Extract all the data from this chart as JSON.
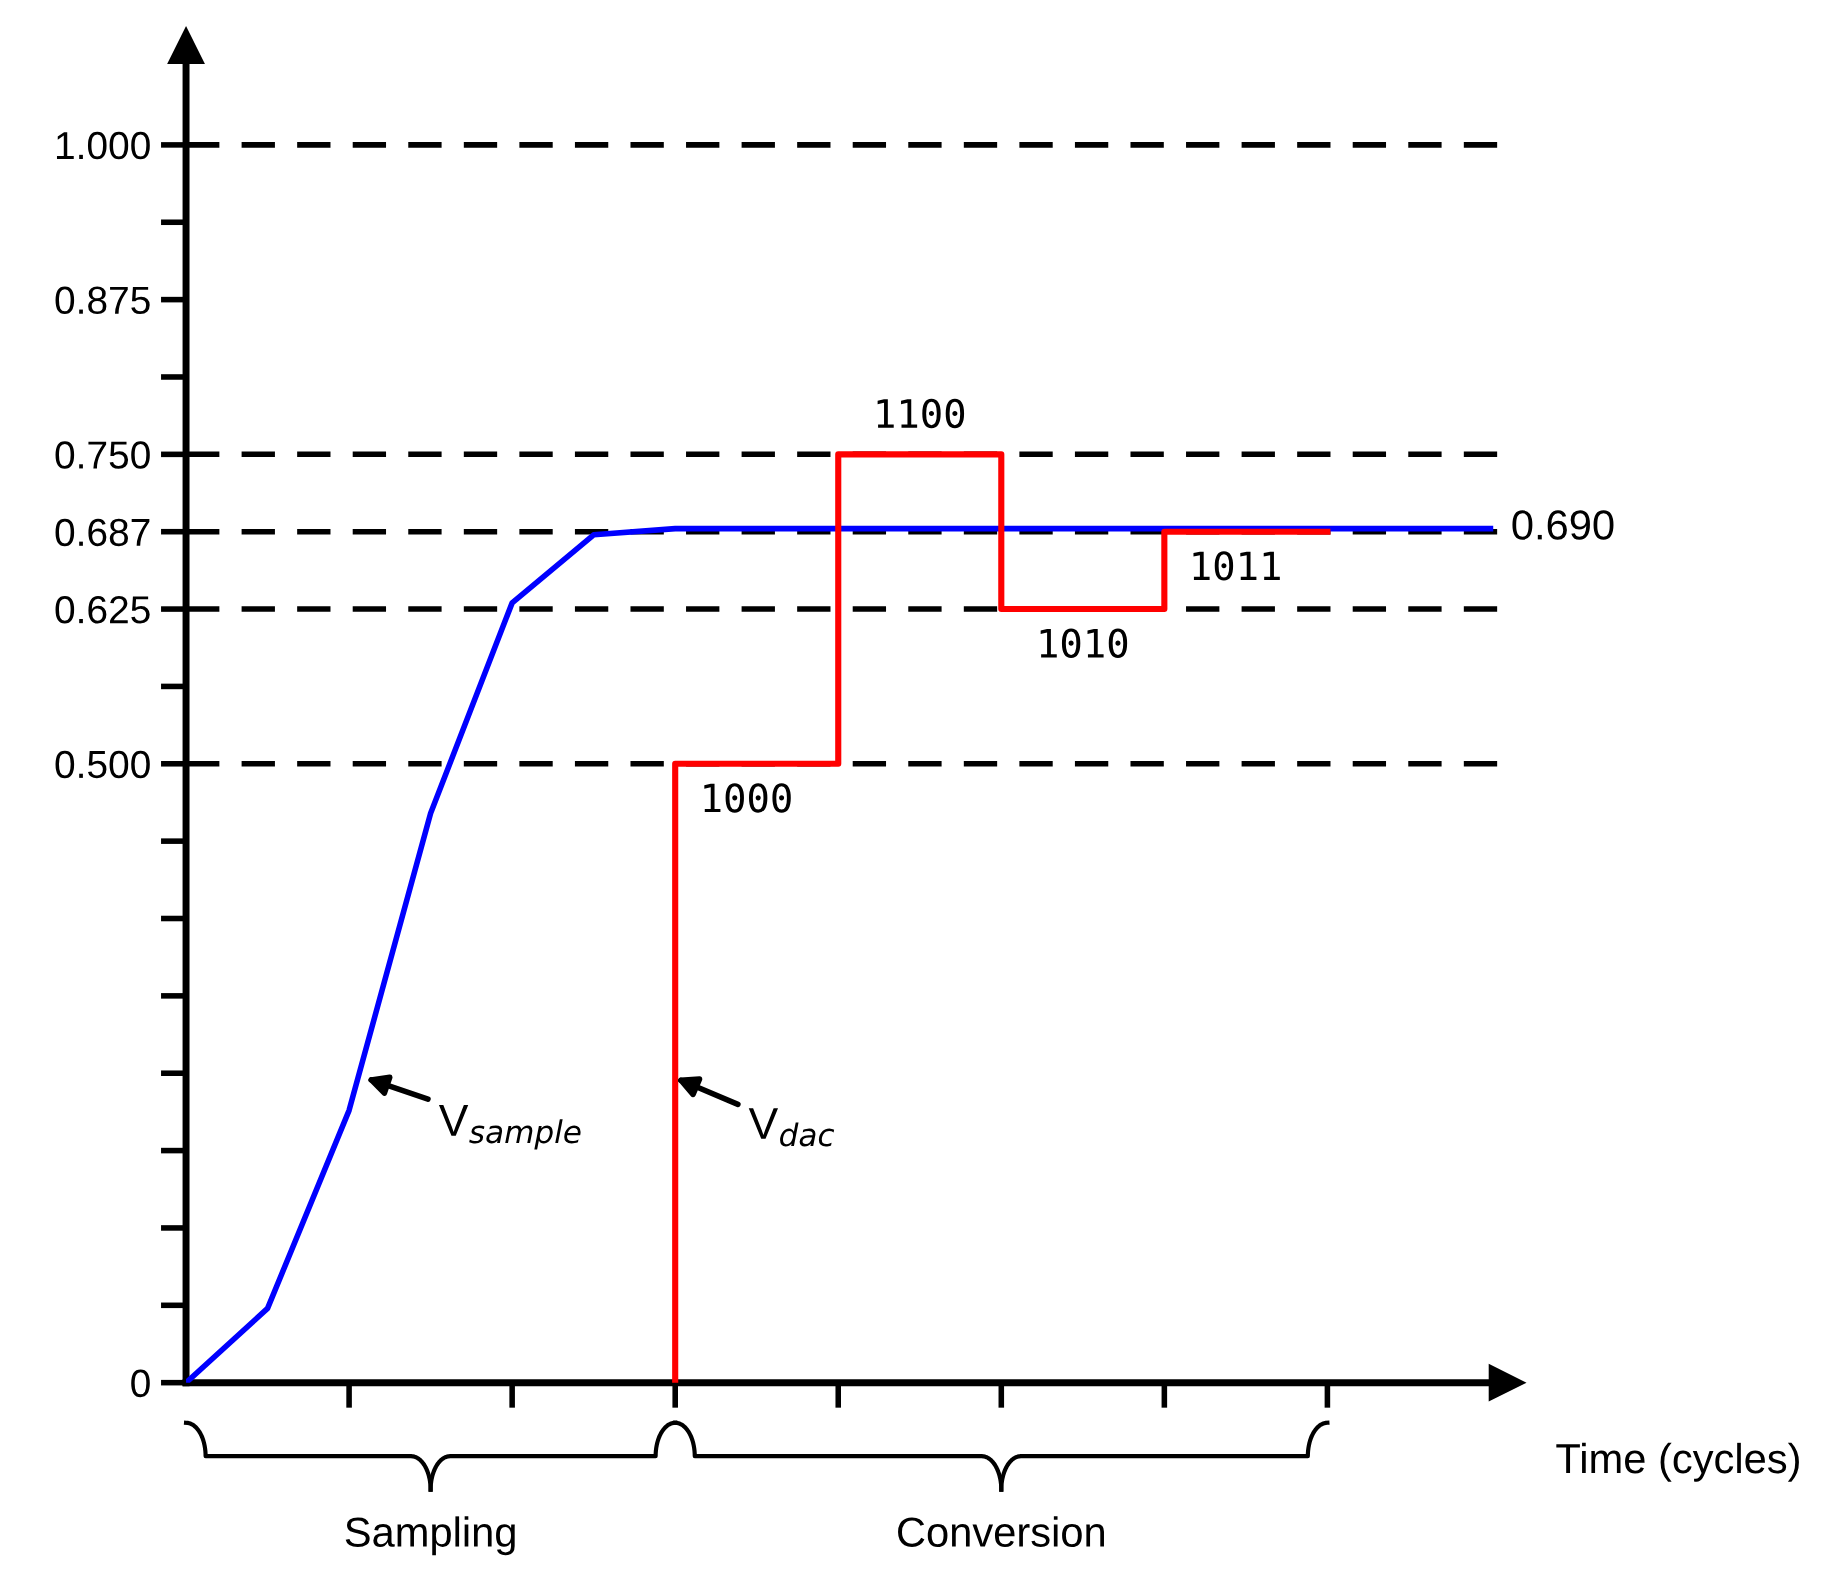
{
  "chart_data": {
    "type": "line",
    "xlabel": "Time (cycles)",
    "categories": [
      null,
      null,
      null,
      null,
      null,
      null,
      null,
      null,
      null,
      null,
      null,
      null,
      null,
      null,
      null,
      null,
      null
    ],
    "ylim": [
      0,
      1.08
    ],
    "yticks": [
      {
        "value": 0,
        "label": "0"
      },
      {
        "value": 0.0625,
        "label": null
      },
      {
        "value": 0.125,
        "label": null
      },
      {
        "value": 0.1875,
        "label": null
      },
      {
        "value": 0.25,
        "label": null
      },
      {
        "value": 0.3125,
        "label": null
      },
      {
        "value": 0.375,
        "label": null
      },
      {
        "value": 0.4375,
        "label": null
      },
      {
        "value": 0.5,
        "label": "0.500"
      },
      {
        "value": 0.5625,
        "label": null
      },
      {
        "value": 0.625,
        "label": "0.625"
      },
      {
        "value": 0.6875,
        "label": "0.687"
      },
      {
        "value": 0.75,
        "label": "0.750"
      },
      {
        "value": 0.8125,
        "label": null
      },
      {
        "value": 0.875,
        "label": "0.875"
      },
      {
        "value": 0.9375,
        "label": null
      },
      {
        "value": 1.0,
        "label": "1.000"
      }
    ],
    "tick_labels": "y",
    "grid": false,
    "legend": false,
    "series": [
      {
        "color": "#0000ff",
        "values": [
          0,
          0.06,
          0.22,
          0.46,
          0.63,
          0.685,
          0.69,
          0.69,
          0.69,
          0.69,
          0.69,
          0.69,
          0.69,
          0.69,
          0.69,
          0.69,
          0.69
        ]
      },
      {
        "type": "step",
        "color": "#ff0000",
        "values": [
          null,
          null,
          null,
          null,
          null,
          null,
          0,
          0.5,
          0.5,
          0.75,
          0.75,
          0.625,
          0.625,
          0.6875,
          0.6875,
          null,
          null
        ]
      }
    ],
    "ref_lines": [
      {
        "axis": "y",
        "value": 0.5,
        "line_style": "dashed",
        "color": "#000000"
      },
      {
        "axis": "y",
        "value": 0.625,
        "line_style": "dashed",
        "color": "#000000"
      },
      {
        "axis": "y",
        "value": 0.6875,
        "line_style": "dashed",
        "color": "#000000"
      },
      {
        "axis": "y",
        "value": 0.75,
        "line_style": "dashed",
        "color": "#000000"
      },
      {
        "axis": "y",
        "value": 1.0,
        "line_style": "dashed",
        "color": "#000000"
      }
    ],
    "annotations": [
      {
        "text": "1000",
        "y": 0.5
      },
      {
        "text": "1100",
        "y": 0.75
      },
      {
        "text": "1010",
        "y": 0.625
      },
      {
        "text": "1011",
        "y": 0.6875
      },
      "0.690",
      "V$_{sample}$",
      "V$_{dac}$",
      "Sampling",
      "Conversion"
    ]
  }
}
